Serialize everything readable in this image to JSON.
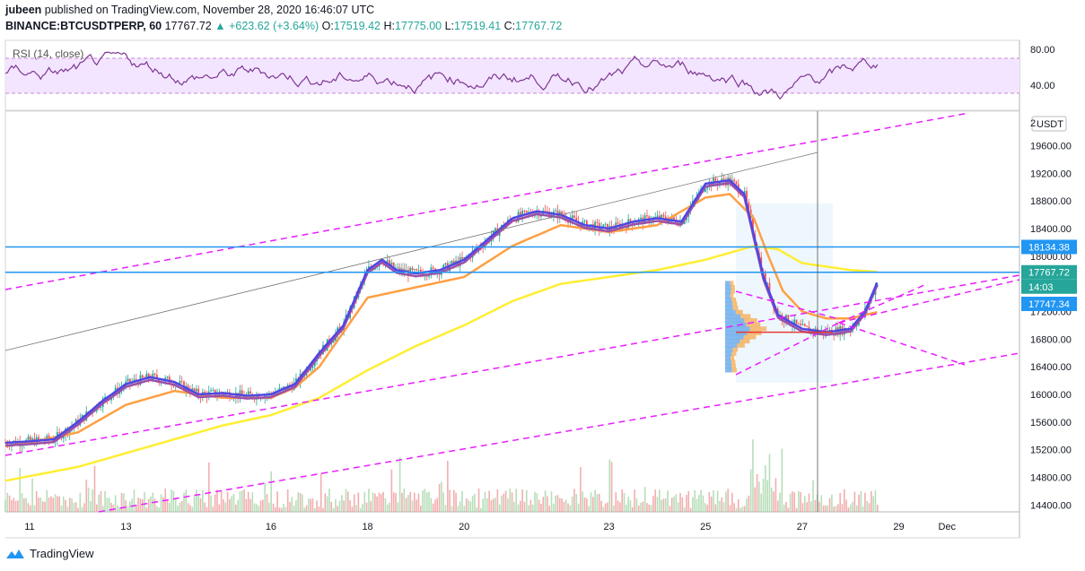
{
  "header": {
    "author": "jubeen",
    "published_text": "published on TradingView.com, November 28, 2020 16:46:07 UTC",
    "symbol": "BINANCE:BTCUSDTPERP, 60",
    "last": "17767.72",
    "change": "+623.62 (+3.64%)",
    "o_label": "O:",
    "o": "17519.42",
    "h_label": "H:",
    "h": "17775.00",
    "l_label": "L:",
    "l": "17519.41",
    "c_label": "C:",
    "c": "17767.72"
  },
  "rsi": {
    "label": "RSI (14, close)",
    "ticks": [
      "80.00",
      "40.00"
    ]
  },
  "price_axis": {
    "currency": "USDT",
    "ticks": [
      "19600.00",
      "19200.00",
      "18800.00",
      "18400.00",
      "18000.00",
      "17600.00",
      "17200.00",
      "16800.00",
      "16400.00",
      "16000.00",
      "15600.00",
      "15200.00",
      "14800.00",
      "14400.00"
    ],
    "partial_top": "2",
    "partial_17k": "17",
    "badges": [
      {
        "text": "18134.38",
        "value": 18134.38,
        "color": "#2196f3"
      },
      {
        "text": "17767.72",
        "value": 17767.72,
        "color": "#26a69a"
      },
      {
        "text": "14:03",
        "value": 17560,
        "color": "#26a69a"
      },
      {
        "text": "17747.34",
        "value": 17310,
        "color": "#2196f3"
      }
    ]
  },
  "time_axis": {
    "ticks": [
      {
        "label": "11",
        "day": 11
      },
      {
        "label": "13",
        "day": 13
      },
      {
        "label": "16",
        "day": 16
      },
      {
        "label": "18",
        "day": 18
      },
      {
        "label": "20",
        "day": 20
      },
      {
        "label": "23",
        "day": 23
      },
      {
        "label": "25",
        "day": 25
      },
      {
        "label": "27",
        "day": 27
      },
      {
        "label": "29",
        "day": 29
      },
      {
        "label": "Dec",
        "day": 30
      }
    ]
  },
  "footer": {
    "brand": "TradingView"
  },
  "colors": {
    "up": "#26a69a",
    "down": "#ef5350",
    "channel": "#e91eff",
    "hline": "#2196f3",
    "ema_fast": "#4f46e5",
    "ema_mid": "#9c4fa8",
    "ema_slow": "#ff9f43",
    "ema_long": "#ffee33",
    "rsi": "#7e3794"
  },
  "chart_data": {
    "type": "line",
    "symbol": "BINANCE:BTCUSDTPERP",
    "interval": "60",
    "x_unit": "day of Nov 2020",
    "ylim": [
      14300,
      20100
    ],
    "xlim": [
      10.5,
      31.5
    ],
    "horizontal_lines": [
      18134.38,
      17767.72
    ],
    "series": [
      {
        "x": [
          10.5,
          11,
          11.5,
          12,
          12.5,
          13,
          13.5,
          14,
          14.5,
          15,
          15.5,
          16,
          16.5,
          17,
          17.5,
          18,
          18.3,
          18.6,
          19,
          19.5,
          20,
          20.5,
          21,
          21.5,
          22,
          22.5,
          23,
          23.5,
          24,
          24.5,
          25,
          25.5,
          25.8,
          26,
          26.2,
          26.5,
          27,
          27.5,
          28,
          28.3,
          28.6
        ],
        "values": [
          15300,
          15320,
          15350,
          15600,
          15900,
          16150,
          16250,
          16180,
          16000,
          16020,
          15980,
          16000,
          16150,
          16600,
          17000,
          17800,
          17950,
          17800,
          17750,
          17800,
          17950,
          18250,
          18550,
          18650,
          18600,
          18450,
          18400,
          18500,
          18550,
          18500,
          19050,
          19100,
          18900,
          18300,
          17700,
          17150,
          16950,
          16900,
          16950,
          17200,
          17700
        ]
      },
      {
        "x": [
          10.5,
          11,
          12,
          13,
          14,
          15,
          16,
          16.5,
          17,
          17.5,
          18,
          19,
          20,
          21,
          22,
          23,
          24,
          25,
          25.5,
          26,
          26.3,
          26.6,
          27,
          27.5,
          28,
          28.6
        ],
        "values": [
          15250,
          15300,
          15450,
          15850,
          16050,
          15950,
          15950,
          16100,
          16400,
          16900,
          17400,
          17550,
          17700,
          18150,
          18450,
          18350,
          18450,
          18850,
          18900,
          18550,
          18000,
          17500,
          17200,
          17100,
          17100,
          17200
        ]
      },
      {
        "x": [
          10.5,
          12,
          13.5,
          15,
          16,
          17,
          18,
          19,
          20,
          21,
          22,
          23,
          24,
          25,
          26,
          26.5,
          27,
          28,
          28.6
        ],
        "values": [
          14750,
          14950,
          15250,
          15550,
          15700,
          15950,
          16350,
          16700,
          17000,
          17350,
          17600,
          17700,
          17800,
          17950,
          18150,
          18100,
          17900,
          17800,
          17770
        ]
      }
    ],
    "rsi_ylim": [
      20,
      90
    ],
    "rsi_bands": [
      70,
      30
    ]
  }
}
